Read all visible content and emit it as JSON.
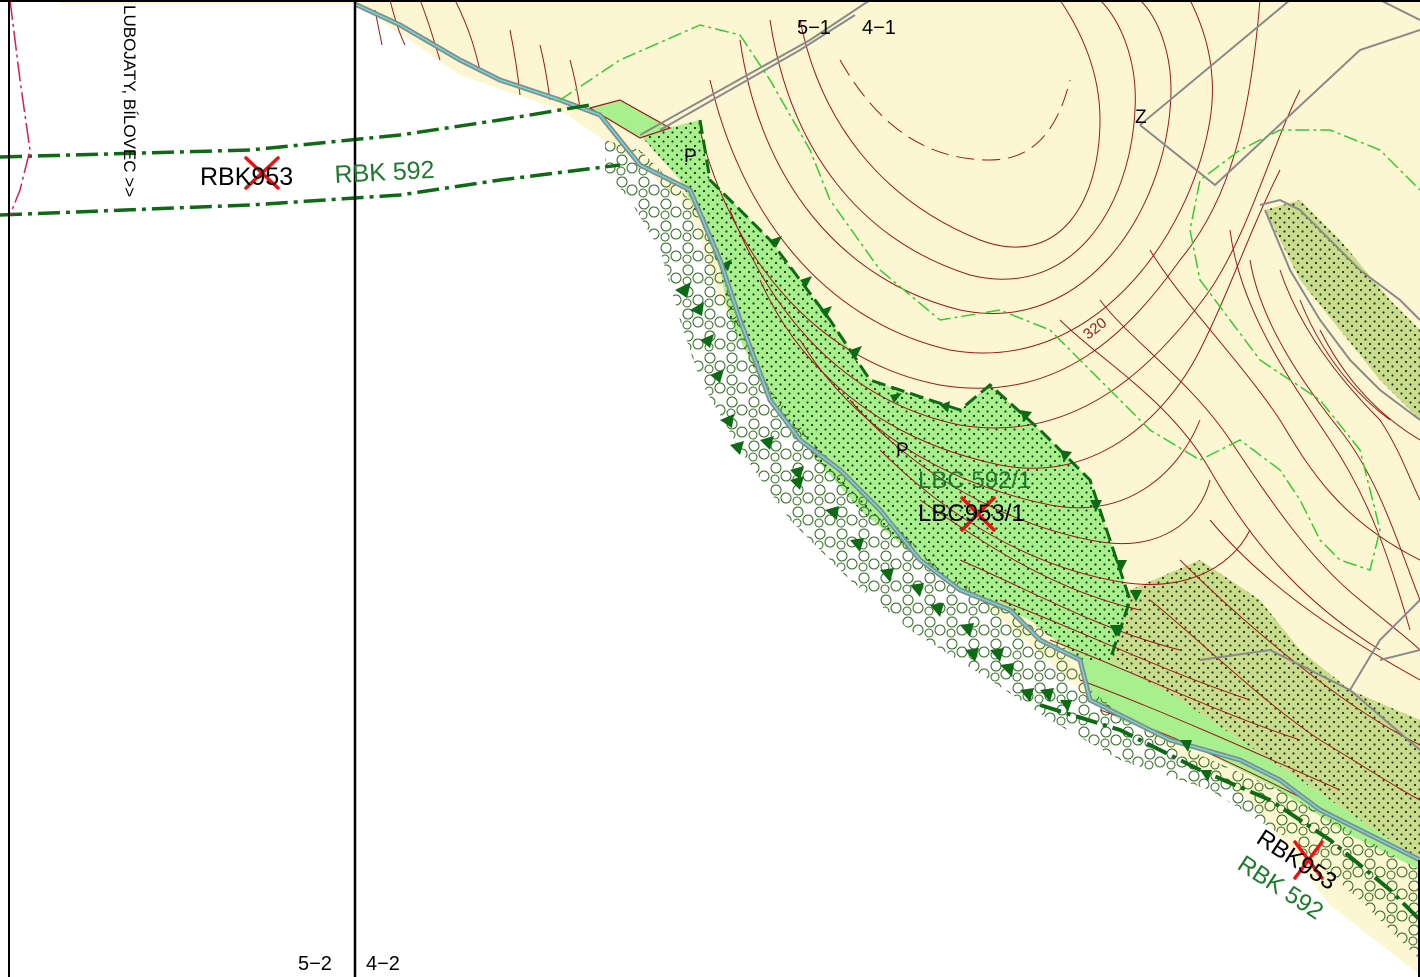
{
  "sheets": {
    "top_left": "5−1",
    "top_right": "4−1",
    "bottom_left": "5−2",
    "bottom_right": "4−2"
  },
  "road_label": "LUBOJATY, BÍLOVEC >>",
  "corridor_top": {
    "old_prefix": "RBK",
    "old_suffix": "953",
    "new_label": "RBK 592"
  },
  "center": {
    "new_label": "LBC 592/1",
    "old_prefix": "LBC",
    "old_suffix": "953/1"
  },
  "corridor_bottom": {
    "old_prefix": "RBK",
    "old_suffix": "953",
    "new_label": "RBK 592"
  },
  "land_marks": {
    "p_top": "P",
    "p_center": "P",
    "z": "Z"
  },
  "contour_label": "320",
  "colors": {
    "field": "#fcf7d2",
    "biocentre": "#a8f08e",
    "forest": "#c9dc8d",
    "contour": "#9a1a1a",
    "eco_line": "#0e6a14",
    "eco_text": "#1c7a2a",
    "cross": "#ee1111",
    "parcel": "#8a8a8a",
    "pink_line": "#d0205a",
    "light_green_line": "#33cc33"
  }
}
